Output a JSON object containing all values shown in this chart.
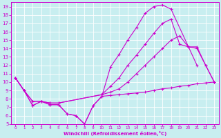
{
  "xlabel": "Windchill (Refroidissement éolien,°C)",
  "bg_color": "#c8eef0",
  "line_color": "#cc00cc",
  "grid_color": "#ffffff",
  "xlim": [
    -0.5,
    23.5
  ],
  "ylim": [
    5,
    19.5
  ],
  "xticks": [
    0,
    1,
    2,
    3,
    4,
    5,
    6,
    7,
    8,
    9,
    10,
    11,
    12,
    13,
    14,
    15,
    16,
    17,
    18,
    19,
    20,
    21,
    22,
    23
  ],
  "yticks": [
    5,
    6,
    7,
    8,
    9,
    10,
    11,
    12,
    13,
    14,
    15,
    16,
    17,
    18,
    19
  ],
  "series": [
    {
      "x": [
        0,
        1,
        2,
        3,
        4,
        5,
        6,
        7,
        8,
        9,
        10,
        11,
        12,
        13,
        14,
        15,
        16,
        17,
        18,
        19,
        20,
        21,
        22,
        23
      ],
      "y": [
        10.5,
        9.0,
        7.2,
        7.7,
        7.3,
        7.3,
        6.2,
        6.0,
        5.0,
        7.2,
        8.3,
        8.4,
        8.5,
        8.6,
        8.7,
        8.8,
        9.0,
        9.2,
        9.3,
        9.5,
        9.6,
        9.8,
        9.9,
        10.0
      ]
    },
    {
      "x": [
        0,
        1,
        2,
        3,
        4,
        5,
        6,
        7,
        8,
        9,
        10,
        11,
        12,
        13,
        14,
        15,
        16,
        17,
        18,
        21
      ],
      "y": [
        10.5,
        9.0,
        7.2,
        7.7,
        7.3,
        7.3,
        6.2,
        6.0,
        5.0,
        7.2,
        8.3,
        11.8,
        13.3,
        15.0,
        16.5,
        18.2,
        19.0,
        19.2,
        18.7,
        12.0
      ]
    },
    {
      "x": [
        0,
        1,
        2,
        3,
        4,
        5,
        10,
        11,
        12,
        13,
        14,
        15,
        16,
        17,
        18,
        19,
        20,
        21,
        22,
        23
      ],
      "y": [
        10.5,
        9.0,
        7.7,
        7.7,
        7.5,
        7.5,
        8.5,
        9.5,
        10.5,
        12.0,
        13.2,
        14.5,
        15.8,
        17.0,
        17.5,
        14.5,
        14.2,
        14.0,
        12.0,
        10.0
      ]
    },
    {
      "x": [
        0,
        1,
        2,
        3,
        4,
        5,
        10,
        11,
        12,
        13,
        14,
        15,
        16,
        17,
        18,
        19,
        20,
        21,
        22,
        23
      ],
      "y": [
        10.5,
        9.0,
        7.7,
        7.7,
        7.5,
        7.5,
        8.5,
        8.8,
        9.2,
        10.0,
        11.0,
        12.0,
        13.0,
        14.0,
        15.0,
        15.5,
        14.2,
        14.2,
        12.0,
        10.0
      ]
    }
  ]
}
